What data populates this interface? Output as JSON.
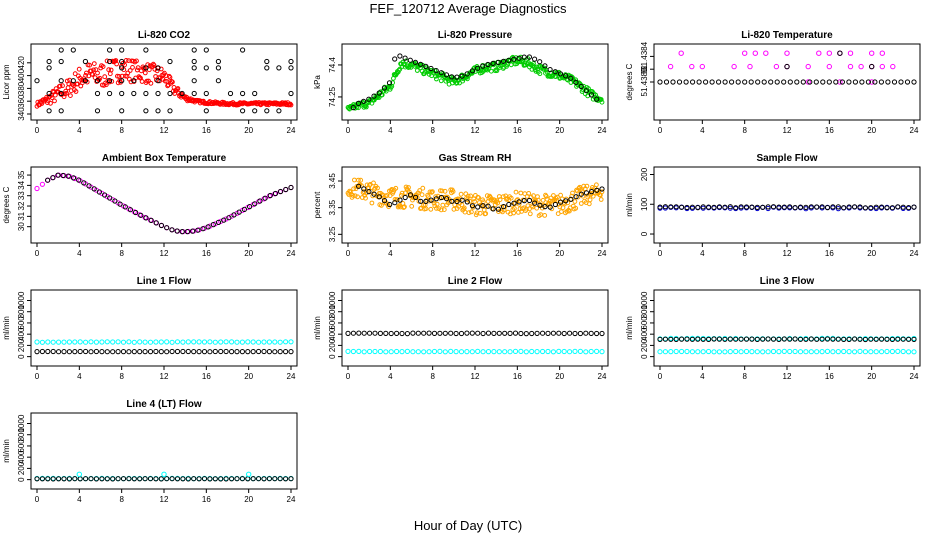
{
  "page": {
    "title": "FEF_120712  Average Diagnostics",
    "xlabel": "Hour of Day (UTC)"
  },
  "chart_data": [
    {
      "title": "Li-820 CO2",
      "type": "scatter",
      "ylabel": "Licor ppm",
      "xlim": [
        0,
        24
      ],
      "ylim": [
        340,
        440
      ],
      "xticks": [
        0,
        4,
        8,
        12,
        16,
        20,
        24
      ],
      "yticks": [
        340,
        360,
        380,
        400,
        420
      ],
      "series": [
        {
          "color": "#ff0000",
          "gen": "band",
          "x": [
            0,
            1,
            2,
            3,
            4,
            5,
            6,
            7,
            8,
            9,
            10,
            11,
            12,
            13,
            14,
            15,
            16,
            18,
            20,
            22,
            24
          ],
          "y": [
            355,
            362,
            372,
            380,
            395,
            402,
            400,
            405,
            410,
            408,
            405,
            402,
            398,
            378,
            365,
            360,
            358,
            356,
            356,
            356,
            356
          ],
          "spread": [
            3,
            8,
            12,
            15,
            18,
            20,
            20,
            20,
            20,
            18,
            16,
            16,
            14,
            8,
            4,
            2,
            2,
            2,
            2,
            2,
            2
          ]
        },
        {
          "color": "#000000",
          "gen": "rows",
          "rows": [
            444,
            422,
            412,
            392,
            372,
            345
          ],
          "pts": 22
        }
      ]
    },
    {
      "title": "Li-820 Pressure",
      "type": "scatter",
      "ylabel": "kPa",
      "xlim": [
        0,
        24
      ],
      "ylim": [
        74.17,
        74.47
      ],
      "xticks": [
        0,
        4,
        8,
        12,
        16,
        20,
        24
      ],
      "yticks": [
        74.25,
        74.4
      ],
      "series": [
        {
          "color": "#00cc00",
          "gen": "band",
          "x": [
            0,
            1,
            2,
            3,
            4,
            5,
            6,
            8,
            10,
            12,
            13,
            14,
            15,
            16,
            17,
            18,
            20,
            21,
            22,
            23,
            24
          ],
          "y": [
            74.19,
            74.21,
            74.22,
            74.26,
            74.3,
            74.41,
            74.4,
            74.36,
            74.32,
            74.37,
            74.39,
            74.39,
            74.41,
            74.42,
            74.41,
            74.38,
            74.35,
            74.33,
            74.3,
            74.26,
            74.24
          ],
          "spread": [
            0.015,
            0.015,
            0.015,
            0.02,
            0.02,
            0.02,
            0.02,
            0.02,
            0.02,
            0.02,
            0.02,
            0.02,
            0.02,
            0.02,
            0.02,
            0.02,
            0.02,
            0.02,
            0.02,
            0.02,
            0.015
          ]
        },
        {
          "color": "#000000",
          "gen": "line",
          "x": [
            0.5,
            1,
            2,
            3,
            4,
            4.5,
            5,
            6,
            7,
            8,
            9,
            10,
            11,
            12,
            13,
            14,
            15,
            16,
            17,
            18,
            19,
            20,
            21,
            22,
            23,
            23.5
          ],
          "y": [
            74.2,
            74.22,
            74.24,
            74.27,
            74.32,
            74.45,
            74.44,
            74.42,
            74.4,
            74.38,
            74.36,
            74.34,
            74.35,
            74.38,
            74.4,
            74.41,
            74.42,
            74.43,
            74.44,
            74.42,
            74.38,
            74.36,
            74.34,
            74.3,
            74.26,
            74.24
          ]
        }
      ]
    },
    {
      "title": "Li-820 Temperature",
      "type": "scatter",
      "ylabel": "degrees C",
      "xlim": [
        0,
        24
      ],
      "ylim": [
        51.4375,
        51.4385
      ],
      "xticks": [
        0,
        4,
        8,
        12,
        16,
        20,
        24
      ],
      "yticks": [
        51.438,
        51.4384
      ],
      "ytick_labels": [
        "51.4380",
        "51.4384"
      ],
      "ytick_extra": [
        {
          "v": 51.4382,
          "label": "51"
        }
      ],
      "series": [
        {
          "color": "#ff00ff",
          "gen": "scatter",
          "x": [
            2,
            8,
            9,
            10,
            12,
            15,
            16,
            17,
            18,
            20,
            21,
            1,
            3,
            4,
            7,
            8.5,
            11,
            12,
            14,
            16,
            18,
            19,
            20,
            21,
            22,
            14,
            17,
            20
          ],
          "y": [
            51.43845,
            51.43845,
            51.43845,
            51.43845,
            51.43845,
            51.43845,
            51.43845,
            51.43845,
            51.43845,
            51.43845,
            51.43845,
            51.43824,
            51.43824,
            51.43824,
            51.43824,
            51.43824,
            51.43824,
            51.43824,
            51.43824,
            51.43824,
            51.43824,
            51.43824,
            51.43824,
            51.43824,
            51.43824,
            51.438,
            51.438,
            51.438
          ]
        },
        {
          "color": "#000000",
          "gen": "rows",
          "rows": [
            51.438
          ],
          "pts": 40
        },
        {
          "color": "#000000",
          "gen": "scatter",
          "x": [
            12,
            17,
            20
          ],
          "y": [
            51.43824,
            51.43845,
            51.43824
          ]
        }
      ]
    },
    {
      "title": "Ambient Box Temperature",
      "type": "scatter",
      "ylabel": "degrees C",
      "xlim": [
        0,
        24
      ],
      "ylim": [
        29,
        35.2
      ],
      "xticks": [
        0,
        4,
        8,
        12,
        16,
        20,
        24
      ],
      "yticks": [
        30,
        31,
        32,
        33,
        34,
        35
      ],
      "series": [
        {
          "color": "#ff00ff",
          "gen": "line",
          "x": [
            0,
            1,
            2,
            3,
            4,
            6,
            8,
            10,
            12,
            13,
            14,
            15,
            16,
            18,
            20,
            22,
            24
          ],
          "y": [
            33.7,
            34.5,
            35.0,
            34.9,
            34.5,
            33.3,
            32.1,
            31.0,
            30.0,
            29.6,
            29.5,
            29.6,
            29.9,
            30.8,
            31.9,
            33.0,
            33.8
          ]
        },
        {
          "color": "#000000",
          "gen": "line",
          "x": [
            1,
            2,
            3,
            4,
            6,
            8,
            10,
            12,
            13,
            14,
            15,
            16,
            18,
            20,
            22,
            24
          ],
          "y": [
            34.5,
            35.0,
            34.9,
            34.5,
            33.3,
            32.1,
            31.0,
            30.0,
            29.6,
            29.5,
            29.6,
            29.9,
            30.8,
            31.9,
            33.0,
            33.8
          ]
        }
      ]
    },
    {
      "title": "Gas Stream RH",
      "type": "scatter",
      "ylabel": "percent",
      "xlim": [
        0,
        24
      ],
      "ylim": [
        3.24,
        3.48
      ],
      "xticks": [
        0,
        4,
        8,
        12,
        16,
        20,
        24
      ],
      "yticks": [
        3.25,
        3.35,
        3.45
      ],
      "series": [
        {
          "color": "#ffa500",
          "gen": "band",
          "x": [
            0,
            1,
            2,
            3,
            4,
            6,
            8,
            10,
            12,
            14,
            16,
            18,
            20,
            22,
            24
          ],
          "y": [
            3.42,
            3.42,
            3.41,
            3.4,
            3.39,
            3.39,
            3.38,
            3.38,
            3.36,
            3.36,
            3.37,
            3.36,
            3.36,
            3.39,
            3.41
          ],
          "spread": [
            0.03,
            0.04,
            0.04,
            0.04,
            0.04,
            0.04,
            0.04,
            0.04,
            0.04,
            0.04,
            0.04,
            0.04,
            0.04,
            0.04,
            0.03
          ]
        },
        {
          "color": "#000000",
          "gen": "line",
          "x": [
            1,
            2,
            3,
            4,
            5,
            6,
            7,
            8,
            9,
            10,
            11,
            12,
            13,
            14,
            15,
            16,
            17,
            18,
            19,
            20,
            21,
            22,
            23,
            24
          ],
          "y": [
            3.43,
            3.41,
            3.39,
            3.36,
            3.38,
            3.4,
            3.37,
            3.38,
            3.39,
            3.37,
            3.38,
            3.35,
            3.36,
            3.34,
            3.36,
            3.37,
            3.38,
            3.36,
            3.35,
            3.37,
            3.38,
            3.4,
            3.41,
            3.42
          ]
        }
      ]
    },
    {
      "title": "Sample Flow",
      "type": "scatter",
      "ylabel": "ml/min",
      "xlim": [
        0,
        24
      ],
      "ylim": [
        -10,
        205
      ],
      "xticks": [
        0,
        4,
        8,
        12,
        16,
        20,
        24
      ],
      "yticks": [
        0,
        100,
        200
      ],
      "series": [
        {
          "color": "#0000cc",
          "gen": "flat",
          "y": 88,
          "jitter": 3
        },
        {
          "color": "#000000",
          "gen": "flat",
          "y": 90,
          "jitter": 2
        }
      ]
    },
    {
      "title": "Line 1 Flow",
      "type": "scatter",
      "ylabel": "ml/min",
      "xlim": [
        0,
        24
      ],
      "ylim": [
        -60,
        1080
      ],
      "xticks": [
        0,
        4,
        8,
        12,
        16,
        20,
        24
      ],
      "yticks": [
        0,
        200,
        400,
        600,
        800,
        1000
      ],
      "series": [
        {
          "color": "#00ffff",
          "gen": "flat",
          "y": 260,
          "jitter": 5
        },
        {
          "color": "#000000",
          "gen": "flat",
          "y": 90,
          "jitter": 2
        }
      ]
    },
    {
      "title": "Line 2 Flow",
      "type": "scatter",
      "ylabel": "ml/min",
      "xlim": [
        0,
        24
      ],
      "ylim": [
        -60,
        1080
      ],
      "xticks": [
        0,
        4,
        8,
        12,
        16,
        20,
        24
      ],
      "yticks": [
        0,
        200,
        400,
        600,
        800,
        1000
      ],
      "series": [
        {
          "color": "#00ffff",
          "gen": "flat",
          "y": 90,
          "jitter": 4
        },
        {
          "color": "#000000",
          "gen": "flat",
          "y": 415,
          "jitter": 4
        }
      ]
    },
    {
      "title": "Line 3 Flow",
      "type": "scatter",
      "ylabel": "ml/min",
      "xlim": [
        0,
        24
      ],
      "ylim": [
        -60,
        1080
      ],
      "xticks": [
        0,
        4,
        8,
        12,
        16,
        20,
        24
      ],
      "yticks": [
        0,
        200,
        400,
        600,
        800,
        1000
      ],
      "series": [
        {
          "color": "#00ffff",
          "gen": "flat",
          "y": 90,
          "jitter": 4
        },
        {
          "color": "#00ffff",
          "gen": "flat",
          "y": 320,
          "jitter": 5
        },
        {
          "color": "#000000",
          "gen": "flat",
          "y": 310,
          "jitter": 4
        }
      ]
    },
    {
      "title": "Line 4 (LT) Flow",
      "type": "scatter",
      "ylabel": "ml/min",
      "xlim": [
        0,
        24
      ],
      "ylim": [
        -60,
        1080
      ],
      "xticks": [
        0,
        4,
        8,
        12,
        16,
        20,
        24
      ],
      "yticks": [
        0,
        200,
        400,
        600,
        800,
        1000
      ],
      "series": [
        {
          "color": "#00ffff",
          "gen": "flat",
          "y": 20,
          "jitter": 2
        },
        {
          "color": "#000000",
          "gen": "flat",
          "y": 15,
          "jitter": 2
        },
        {
          "color": "#00ffff",
          "gen": "scatter",
          "x": [
            4,
            12,
            20
          ],
          "y": [
            95,
            95,
            95
          ]
        }
      ]
    }
  ]
}
